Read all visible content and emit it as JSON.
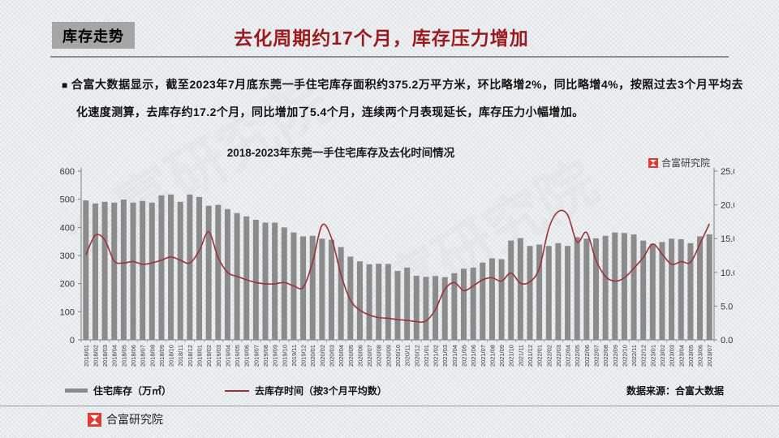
{
  "header": {
    "tag": "库存走势",
    "title": "去化周期约17个月，库存压力增加"
  },
  "summary": {
    "bullet": "■",
    "text": "合富大数据显示，截至2023年7月底东莞一手住宅库存面积约375.2万平方米，环比略增2%，同比略增4%，按照过去3个月平均去化速度测算，去库存约17.2个月，同比增加了5.4个月，连续两个月表现延长，库存压力小幅增加。"
  },
  "brand": "合富研究院",
  "source": "数据来源：合富大数据",
  "colors": {
    "bar": "#8b8b8b",
    "line": "#9d3136",
    "accent_red": "#9a1a1d",
    "logo_red": "#e23a2e",
    "axis": "#808080",
    "axis_text": "#333333"
  },
  "chart_data": {
    "type": "bar",
    "title": "2018-2023年东莞一手住宅库存及去化时间情况",
    "categories": [
      "2018/01",
      "2018/02",
      "2018/03",
      "2018/04",
      "2018/05",
      "2018/06",
      "2018/07",
      "2018/08",
      "2018/09",
      "2018/10",
      "2018/11",
      "2018/12",
      "2019/01",
      "2019/02",
      "2019/03",
      "2019/04",
      "2019/05",
      "2019/06",
      "2019/07",
      "2019/08",
      "2019/09",
      "2019/10",
      "2019/11",
      "2019/12",
      "2020/01",
      "2020/02",
      "2020/03",
      "2020/04",
      "2020/05",
      "2020/06",
      "2020/07",
      "2020/08",
      "2020/09",
      "2020/10",
      "2020/11",
      "2020/12",
      "2021/01",
      "2021/02",
      "2021/03",
      "2021/04",
      "2021/05",
      "2021/06",
      "2021/07",
      "2021/08",
      "2021/09",
      "2021/10",
      "2021/11",
      "2021/12",
      "2022/01",
      "2022/02",
      "2022/03",
      "2022/04",
      "2022/05",
      "2022/06",
      "2022/07",
      "2022/08",
      "2022/09",
      "2022/10",
      "2022/11",
      "2022/12",
      "2023/01",
      "2023/02",
      "2023/03",
      "2023/04",
      "2023/05",
      "2023/06",
      "2023/07"
    ],
    "series": [
      {
        "name": "住宅库存（万㎡）",
        "type": "bar",
        "axis": "left",
        "color": "#8b8b8b",
        "values": [
          496,
          485,
          491,
          488,
          499,
          488,
          494,
          488,
          514,
          517,
          491,
          517,
          508,
          477,
          480,
          465,
          451,
          439,
          427,
          417,
          417,
          400,
          382,
          368,
          370,
          360,
          356,
          330,
          296,
          279,
          269,
          271,
          270,
          245,
          257,
          228,
          224,
          227,
          223,
          237,
          253,
          257,
          275,
          290,
          287,
          353,
          362,
          334,
          339,
          334,
          344,
          334,
          365,
          360,
          361,
          370,
          382,
          380,
          375,
          353,
          342,
          348,
          360,
          358,
          344,
          368,
          375.2
        ]
      },
      {
        "name": "去库存时间（按3个月平均数）",
        "type": "line",
        "axis": "right",
        "color": "#9d3136",
        "values": [
          12.6,
          15.5,
          14.8,
          11.7,
          11.4,
          11.6,
          11.2,
          11.4,
          11.8,
          12.3,
          11.8,
          11.4,
          13.2,
          16.0,
          12.2,
          10.0,
          9.4,
          8.9,
          8.5,
          8.3,
          8.3,
          8.5,
          8.0,
          7.8,
          11.5,
          17.0,
          15.1,
          9.7,
          5.9,
          4.4,
          3.7,
          3.3,
          3.2,
          3.0,
          2.9,
          2.7,
          2.8,
          4.5,
          7.5,
          8.5,
          7.3,
          8.0,
          8.9,
          9.2,
          8.7,
          9.9,
          8.4,
          8.6,
          10.6,
          16.5,
          19.0,
          18.5,
          14.5,
          15.9,
          11.8,
          9.4,
          8.7,
          9.2,
          10.6,
          12.2,
          14.2,
          12.7,
          11.2,
          11.6,
          11.5,
          14.2,
          17.2
        ]
      }
    ],
    "left_axis": {
      "min": 0,
      "max": 600,
      "step": 100
    },
    "right_axis": {
      "min": 0,
      "max": 25,
      "step": 5,
      "decimals": 1
    },
    "legend_position": "bottom",
    "grid": false
  }
}
